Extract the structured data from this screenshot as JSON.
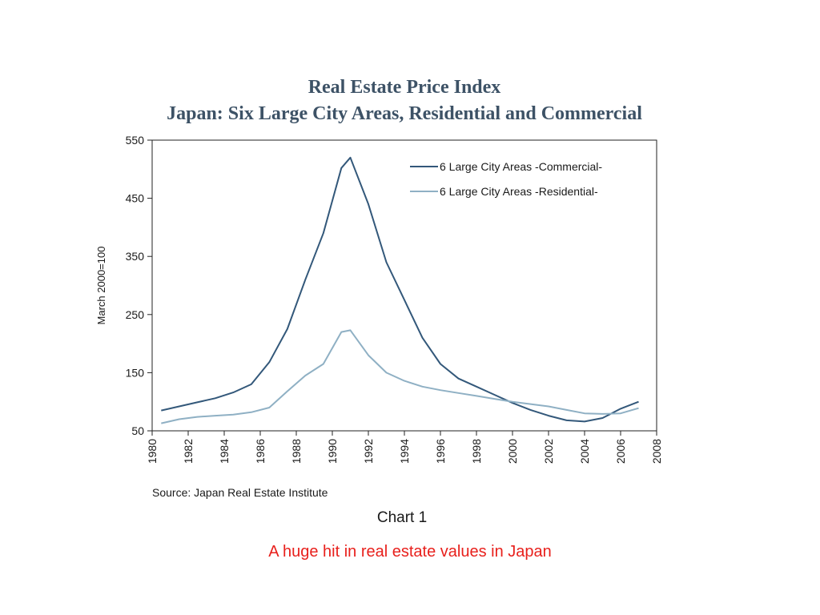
{
  "slide": {
    "caption": "A huge hit in real estate values in Japan",
    "caption_color": "#e8201c"
  },
  "chart_data": {
    "type": "line",
    "title": "Real Estate Price Index",
    "subtitle": "Japan: Six Large City Areas, Residential and Commercial",
    "xlabel": "",
    "ylabel": "March 2000=100",
    "xlim": [
      1980,
      2008
    ],
    "ylim": [
      50,
      550
    ],
    "x_ticks": [
      "1980",
      "1982",
      "1984",
      "1986",
      "1988",
      "1990",
      "1992",
      "1994",
      "1996",
      "1998",
      "2000",
      "2002",
      "2004",
      "2006",
      "2008"
    ],
    "y_ticks": [
      "50",
      "150",
      "250",
      "350",
      "450",
      "550"
    ],
    "grid": false,
    "legend_position": "top-right",
    "source": "Source: Japan Real Estate Institute",
    "chart_label": "Chart 1",
    "series": [
      {
        "name": "6 Large City Areas -Commercial-",
        "color": "#33587a",
        "x": [
          1980.5,
          1981.5,
          1982.5,
          1983.5,
          1984.5,
          1985.5,
          1986.5,
          1987.5,
          1988.5,
          1989.5,
          1990.5,
          1991,
          1992,
          1993,
          1994,
          1995,
          1996,
          1997,
          1998,
          1999,
          2000,
          2001,
          2002,
          2003,
          2004,
          2005,
          2006,
          2007
        ],
        "values": [
          85,
          92,
          99,
          106,
          116,
          130,
          168,
          225,
          310,
          390,
          502,
          520,
          440,
          340,
          275,
          210,
          165,
          140,
          126,
          112,
          98,
          86,
          76,
          68,
          66,
          72,
          88,
          100
        ]
      },
      {
        "name": "6 Large City Areas -Residential-",
        "color": "#8fb0c4",
        "x": [
          1980.5,
          1981.5,
          1982.5,
          1983.5,
          1984.5,
          1985.5,
          1986.5,
          1987.5,
          1988.5,
          1989.5,
          1990.5,
          1991,
          1992,
          1993,
          1994,
          1995,
          1996,
          1997,
          1998,
          1999,
          2000,
          2001,
          2002,
          2003,
          2004,
          2005,
          2006,
          2007
        ],
        "values": [
          63,
          70,
          74,
          76,
          78,
          82,
          90,
          118,
          145,
          165,
          220,
          223,
          180,
          150,
          136,
          126,
          120,
          115,
          110,
          105,
          100,
          96,
          92,
          86,
          80,
          79,
          80,
          89
        ]
      }
    ]
  }
}
